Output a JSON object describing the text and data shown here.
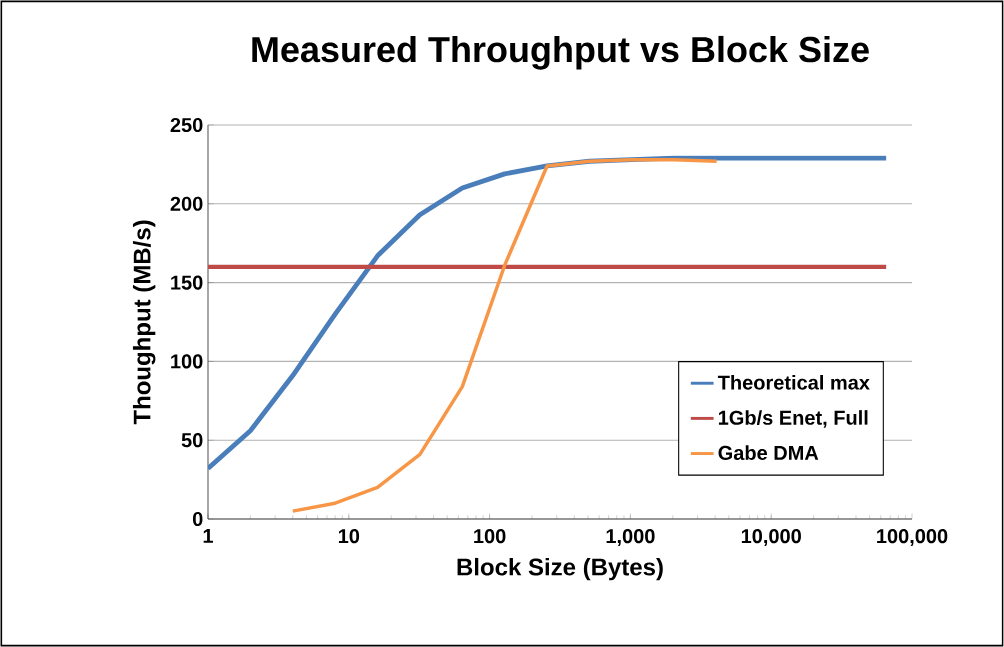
{
  "chart_data": {
    "type": "line",
    "title": "Measured Throughput vs Block Size",
    "xlabel": "Block Size (Bytes)",
    "ylabel": "Thoughput (MB/s)",
    "log": "x",
    "xlim": [
      1,
      100000
    ],
    "ylim": [
      0,
      250
    ],
    "xticks": [
      1,
      10,
      100,
      {
        "value": 1000,
        "label": "1,000"
      },
      {
        "value": 10000,
        "label": "10,000"
      },
      {
        "value": 100000,
        "label": "100,000"
      }
    ],
    "yticks": [
      0,
      50,
      100,
      150,
      200,
      250
    ],
    "grid": "y",
    "legend": "bottom right",
    "series": [
      {
        "name": "Theoretical max",
        "color": "#4a7ebb",
        "x": [
          1,
          2,
          4,
          8,
          16,
          32,
          64,
          128,
          256,
          512,
          1024,
          2048,
          4096,
          8192,
          16384,
          32768,
          65536
        ],
        "values": [
          32,
          56,
          91,
          130,
          167,
          193,
          210,
          219,
          224,
          227,
          228,
          229,
          229,
          229,
          229,
          229,
          229
        ]
      },
      {
        "name": "1Gb/s Enet, Full",
        "color": "#be4b48",
        "x": [
          1,
          65536
        ],
        "values": [
          160,
          160
        ]
      },
      {
        "name": "Gabe DMA",
        "color": "#f79646",
        "x": [
          4,
          8,
          16,
          32,
          64,
          128,
          256,
          512,
          1024,
          2048,
          4096
        ],
        "values": [
          5,
          10,
          20,
          41,
          84,
          161,
          224,
          227,
          228,
          228,
          227
        ]
      }
    ]
  }
}
